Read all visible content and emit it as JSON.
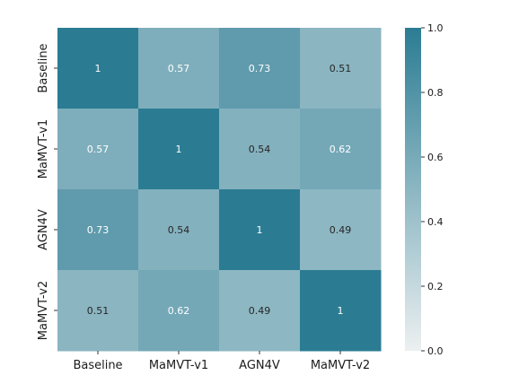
{
  "chart_data": {
    "type": "heatmap",
    "title": "",
    "xlabel": "",
    "ylabel": "",
    "x_categories": [
      "Baseline",
      "MaMVT-v1",
      "AGN4V",
      "MaMVT-v2"
    ],
    "y_categories": [
      "Baseline",
      "MaMVT-v1",
      "AGN4V",
      "MaMVT-v2"
    ],
    "values": [
      [
        1,
        0.57,
        0.73,
        0.51
      ],
      [
        0.57,
        1,
        0.54,
        0.62
      ],
      [
        0.73,
        0.54,
        1,
        0.49
      ],
      [
        0.51,
        0.62,
        0.49,
        1
      ]
    ],
    "annotations": [
      [
        "1",
        "0.57",
        "0.73",
        "0.51"
      ],
      [
        "0.57",
        "1",
        "0.54",
        "0.62"
      ],
      [
        "0.73",
        "0.54",
        "1",
        "0.49"
      ],
      [
        "0.51",
        "0.62",
        "0.49",
        "1"
      ]
    ],
    "colorbar": {
      "range": [
        0.0,
        1.0
      ],
      "ticks": [
        "0.0",
        "0.2",
        "0.4",
        "0.6",
        "0.8",
        "1.0"
      ],
      "color_low": "#ecf0f1",
      "color_high": "#2b7c93"
    },
    "grid": false,
    "legend": "colorbar-right"
  }
}
